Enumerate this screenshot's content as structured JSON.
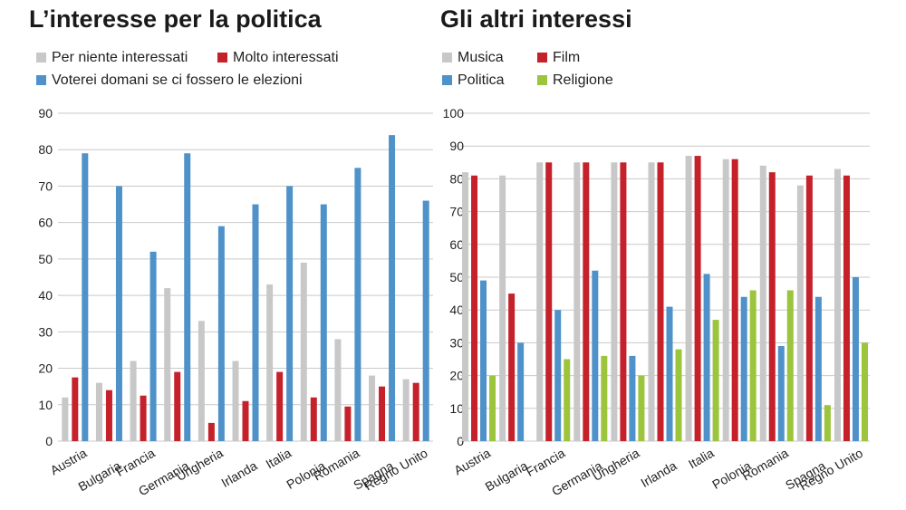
{
  "chart_data": [
    {
      "type": "bar",
      "title": "L’interesse per la politica",
      "categories": [
        "Austria",
        "Bulgaria",
        "Francia",
        "Germania",
        "Ungheria",
        "Irlanda",
        "Italia",
        "Polonia",
        "Romania",
        "Spagna",
        "Regno Unito"
      ],
      "series": [
        {
          "name": "Per niente interessati",
          "color": "#c8c8c8",
          "values": [
            12,
            16,
            22,
            42,
            33,
            22,
            43,
            49,
            28,
            18,
            17
          ]
        },
        {
          "name": "Molto interessati",
          "color": "#c4212b",
          "values": [
            17.5,
            14,
            12.5,
            19,
            5,
            11,
            19,
            12,
            9.5,
            15,
            16
          ]
        },
        {
          "name": "Voterei domani se ci fossero le elezioni",
          "color": "#4e92c9",
          "values": [
            79,
            70,
            52,
            79,
            59,
            65,
            70,
            65,
            75,
            84,
            66
          ]
        }
      ],
      "ylim": [
        0,
        90
      ],
      "yticks": [
        0,
        10,
        20,
        30,
        40,
        50,
        60,
        70,
        80,
        90
      ],
      "grid": true,
      "legend": "top"
    },
    {
      "type": "bar",
      "title": "Gli altri interessi",
      "categories": [
        "Austria",
        "Bulgaria",
        "Francia",
        "Germania",
        "Ungheria",
        "Irlanda",
        "Italia",
        "Polonia",
        "Romania",
        "Spagna",
        "Regno Unito"
      ],
      "series": [
        {
          "name": "Musica",
          "color": "#c8c8c8",
          "values": [
            82,
            81,
            85,
            85,
            85,
            85,
            87,
            86,
            84,
            78,
            83
          ]
        },
        {
          "name": "Film",
          "color": "#c4212b",
          "values": [
            81,
            45,
            85,
            85,
            85,
            85,
            87,
            86,
            82,
            81,
            81
          ]
        },
        {
          "name": "Politica",
          "color": "#4e92c9",
          "values": [
            49,
            30,
            40,
            52,
            26,
            41,
            51,
            44,
            29,
            44,
            50
          ]
        },
        {
          "name": "Religione",
          "color": "#9cc43c",
          "values": [
            20,
            null,
            25,
            26,
            20,
            28,
            37,
            46,
            46,
            11,
            30
          ]
        }
      ],
      "ylim": [
        0,
        100
      ],
      "yticks": [
        0,
        10,
        20,
        30,
        40,
        50,
        60,
        70,
        80,
        90,
        100
      ],
      "grid": true,
      "legend": "top"
    }
  ]
}
